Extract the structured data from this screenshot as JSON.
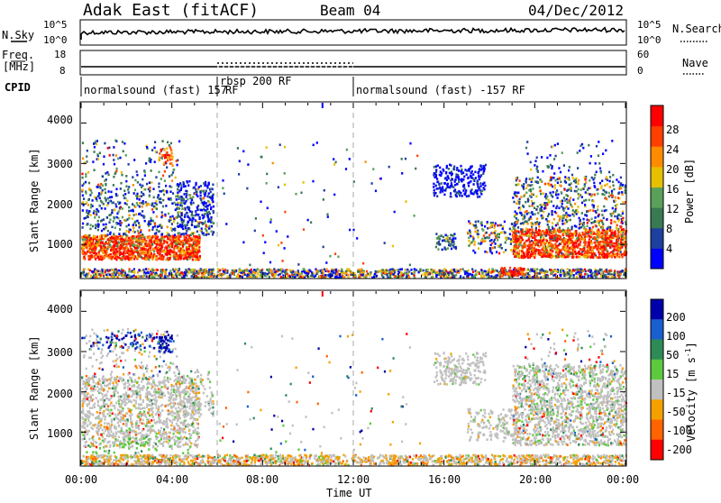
{
  "header": {
    "station": "Adak East (fitACF)",
    "beam": "Beam 04",
    "date": "04/Dec/2012"
  },
  "noise_panel": {
    "left_label": "N.Sky",
    "right_label": "N.Search",
    "left_ticks": [
      "10^5",
      "10^0"
    ],
    "right_ticks": [
      "10^5",
      "10^0"
    ]
  },
  "freq_panel": {
    "left_label_top": "Freq.",
    "left_label_unit": "[MHz]",
    "right_label": "Nave",
    "left_ticks": [
      "18",
      "8"
    ],
    "right_ticks": [
      "60",
      "0"
    ]
  },
  "cpid_panel": {
    "label": "CPID",
    "segments": [
      {
        "name": "normalsound (fast) 157",
        "start_ut": 0,
        "end_ut": 6
      },
      {
        "name": "rbsp 200",
        "start_ut": 6,
        "end_ut": 12
      },
      {
        "name": "normalsound (fast) -157",
        "start_ut": 12,
        "end_ut": 24
      }
    ],
    "labels": {
      "seg1": "normalsound (fast) 157",
      "seg1_rf": "RF",
      "seg2": "rbsp 200 RF",
      "seg3": "normalsound (fast) -157 RF"
    }
  },
  "power_panel": {
    "ylabel": "Slant Range [km]",
    "yticks": [
      "4000",
      "3000",
      "2000",
      "1000"
    ],
    "colorbar_label": "Power [dB]",
    "colorbar_ticks": [
      "28",
      "24",
      "20",
      "16",
      "12",
      "8",
      "4"
    ],
    "colors": [
      "#0000ff",
      "#1d3f9e",
      "#3a7a52",
      "#5aa05a",
      "#e6c000",
      "#ff8c00",
      "#ff4000",
      "#ff0000"
    ]
  },
  "velocity_panel": {
    "ylabel": "Slant Range [km]",
    "yticks": [
      "4000",
      "3000",
      "2000",
      "1000"
    ],
    "colorbar_label": "Velocity [m s",
    "colorbar_label_sup": "-1",
    "colorbar_label_end": "]",
    "colorbar_ticks": [
      "200",
      "100",
      "50",
      "15",
      "-15",
      "-50",
      "-100",
      "-200"
    ],
    "colors": [
      "#0000aa",
      "#1a5fd0",
      "#2e8b57",
      "#5cc93f",
      "#c0c0c0",
      "#f5a000",
      "#ff6400",
      "#ff0000"
    ]
  },
  "xaxis": {
    "ticks": [
      "00:00",
      "04:00",
      "08:00",
      "12:00",
      "16:00",
      "20:00",
      "00:00"
    ],
    "label": "Time UT"
  },
  "chart_data": {
    "type": "heatmap",
    "title": "Adak East (fitACF) Beam 04 04/Dec/2012",
    "xlabel": "Time UT",
    "ylabel": "Slant Range [km]",
    "x_range_hours": [
      0,
      24
    ],
    "y_range_km": [
      180,
      4500
    ],
    "series": [
      {
        "name": "Power [dB]",
        "color_range": [
          0,
          30
        ]
      },
      {
        "name": "Velocity [m s-1]",
        "color_range": [
          -250,
          250
        ]
      }
    ],
    "noise_sky_range": [
      "10^0",
      "10^5"
    ],
    "freq_range_mhz": [
      8,
      18
    ],
    "nave_range": [
      0,
      60
    ]
  }
}
